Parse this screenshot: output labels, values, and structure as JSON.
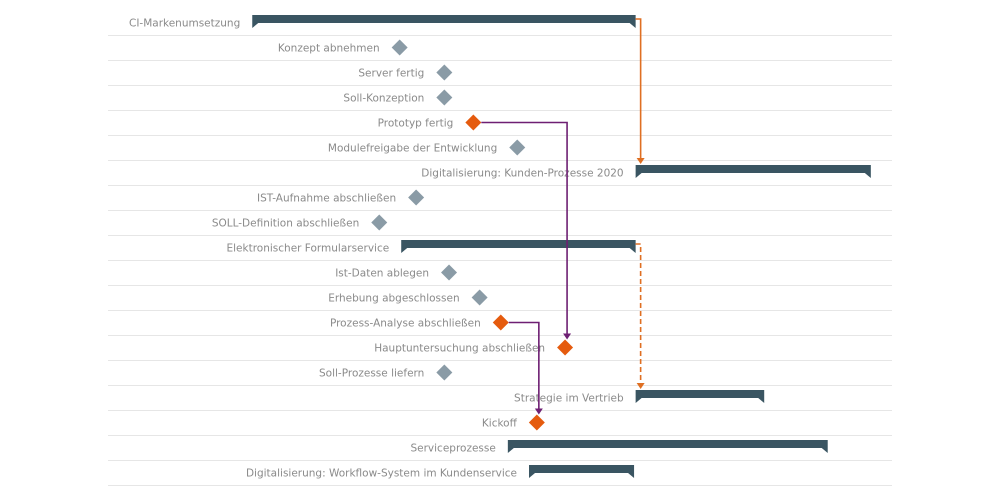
{
  "chart_data": {
    "type": "gantt",
    "title": "",
    "timeline_range": [
      0,
      100
    ],
    "colors": {
      "task_bar": "#3a5562",
      "milestone": "#8a9ba6",
      "critical_milestone": "#e55b0e",
      "dependency_orange": "#df6f22",
      "dependency_purple": "#6e1f73",
      "grid": "#e6e6e6"
    },
    "items": [
      {
        "label": "CI-Markenumsetzung",
        "kind": "task",
        "start": 18.4,
        "end": 67.3
      },
      {
        "label": "Konzept abnehmen",
        "kind": "milestone",
        "at": 37.2
      },
      {
        "label": "Server fertig",
        "kind": "milestone",
        "at": 42.9
      },
      {
        "label": "Soll-Konzeption",
        "kind": "milestone",
        "at": 42.9
      },
      {
        "label": "Prototyp fertig",
        "kind": "milestone",
        "at": 46.6,
        "critical": true
      },
      {
        "label": "Modulefreigabe der Entwicklung",
        "kind": "milestone",
        "at": 52.2
      },
      {
        "label": "Digitalisierung: Kunden-Prozesse 2020",
        "kind": "task",
        "start": 67.3,
        "end": 97.3
      },
      {
        "label": "IST-Aufnahme abschließen",
        "kind": "milestone",
        "at": 39.3
      },
      {
        "label": "SOLL-Definition abschließen",
        "kind": "milestone",
        "at": 34.6
      },
      {
        "label": "Elektronischer Formularservice",
        "kind": "task",
        "start": 37.4,
        "end": 67.3
      },
      {
        "label": "Ist-Daten ablegen",
        "kind": "milestone",
        "at": 43.5
      },
      {
        "label": "Erhebung abgeschlossen",
        "kind": "milestone",
        "at": 47.4
      },
      {
        "label": "Prozess-Analyse abschließen",
        "kind": "milestone",
        "at": 50.1,
        "critical": true
      },
      {
        "label": "Hauptuntersuchung abschließen",
        "kind": "milestone",
        "at": 58.3,
        "critical": true
      },
      {
        "label": "Soll-Prozesse liefern",
        "kind": "milestone",
        "at": 42.9
      },
      {
        "label": "Strategie im Vertrieb",
        "kind": "task",
        "start": 67.3,
        "end": 83.7
      },
      {
        "label": "Kickoff",
        "kind": "milestone",
        "at": 54.7,
        "critical": true
      },
      {
        "label": "Serviceprozesse",
        "kind": "task",
        "start": 51.0,
        "end": 91.8
      },
      {
        "label": "Digitalisierung: Workflow-System im Kundenservice",
        "kind": "task",
        "start": 53.7,
        "end": 67.1
      }
    ],
    "dependencies": [
      {
        "from": 0,
        "to": 6,
        "color": "orange",
        "style": "solid"
      },
      {
        "from": 9,
        "to": 15,
        "color": "orange",
        "style": "dashed"
      },
      {
        "from": 4,
        "to": 13,
        "color": "purple",
        "style": "solid"
      },
      {
        "from": 12,
        "to": 16,
        "color": "purple",
        "style": "solid"
      }
    ]
  }
}
